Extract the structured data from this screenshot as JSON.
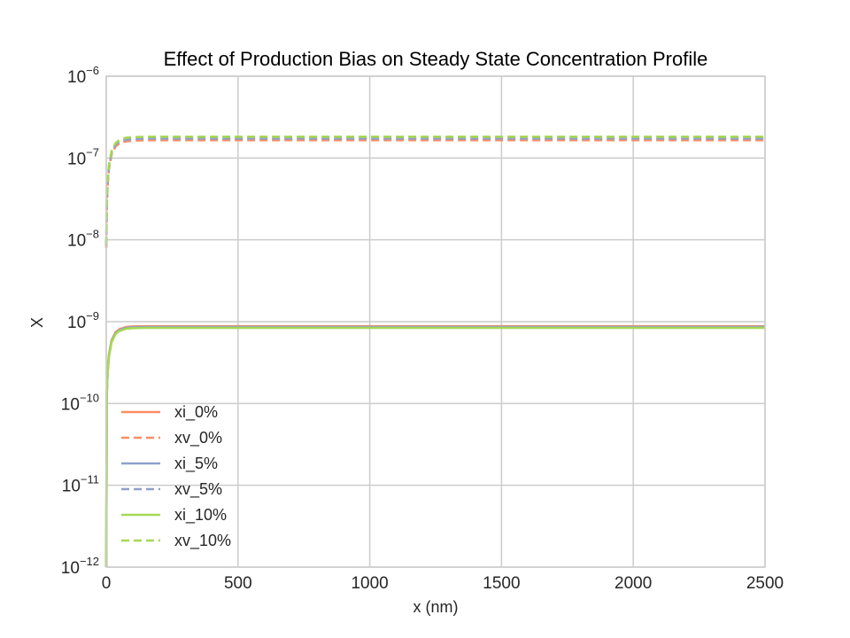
{
  "chart_data": {
    "type": "line",
    "title": "Effect of Production Bias on Steady State Concentration Profile",
    "xlabel": "x (nm)",
    "ylabel": "X",
    "xlim": [
      0,
      2500
    ],
    "ylim": [
      1e-12,
      1e-06
    ],
    "yscale": "log",
    "xticks": [
      0,
      500,
      1000,
      1500,
      2000,
      2500
    ],
    "xtick_labels": [
      "0",
      "500",
      "1000",
      "1500",
      "2000",
      "2500"
    ],
    "yticks": [
      {
        "base": "10",
        "exp": "−12",
        "value": 1e-12
      },
      {
        "base": "10",
        "exp": "−11",
        "value": 1e-11
      },
      {
        "base": "10",
        "exp": "−10",
        "value": 1e-10
      },
      {
        "base": "10",
        "exp": "−9",
        "value": 1e-09
      },
      {
        "base": "10",
        "exp": "−8",
        "value": 1e-08
      },
      {
        "base": "10",
        "exp": "−7",
        "value": 1e-07
      },
      {
        "base": "10",
        "exp": "−6",
        "value": 1e-06
      }
    ],
    "grid": true,
    "legend_position": "lower-left",
    "series": [
      {
        "name": "xi_0%",
        "color": "#fc8d62",
        "style": "solid",
        "plateau": 8.8e-10,
        "x": [
          0,
          2,
          5,
          10,
          20,
          35,
          50,
          75,
          100,
          150,
          200,
          300,
          500,
          1000,
          1500,
          2000,
          2500
        ],
        "y": [
          1e-12,
          1.3e-10,
          2.4e-10,
          3.9e-10,
          5.9e-10,
          7.4e-10,
          8.1e-10,
          8.6e-10,
          8.74e-10,
          8.8e-10,
          8.8e-10,
          8.8e-10,
          8.8e-10,
          8.8e-10,
          8.8e-10,
          8.8e-10,
          8.8e-10
        ]
      },
      {
        "name": "xv_0%",
        "color": "#fc8d62",
        "style": "dashed",
        "plateau": 1.65e-07,
        "x": [
          0,
          2,
          5,
          10,
          20,
          35,
          50,
          75,
          100,
          150,
          200,
          300,
          500,
          1000,
          1500,
          2000,
          2500
        ],
        "y": [
          8e-09,
          2.5e-08,
          4.5e-08,
          7.3e-08,
          1.1e-07,
          1.38e-07,
          1.51e-07,
          1.6e-07,
          1.63e-07,
          1.65e-07,
          1.65e-07,
          1.65e-07,
          1.65e-07,
          1.65e-07,
          1.65e-07,
          1.65e-07,
          1.65e-07
        ]
      },
      {
        "name": "xi_5%",
        "color": "#8da0cb",
        "style": "solid",
        "plateau": 8.6e-10,
        "x": [
          0,
          2,
          5,
          10,
          20,
          35,
          50,
          75,
          100,
          150,
          200,
          300,
          500,
          1000,
          1500,
          2000,
          2500
        ],
        "y": [
          1e-12,
          1.28e-10,
          2.35e-10,
          3.8e-10,
          5.75e-10,
          7.2e-10,
          7.9e-10,
          8.4e-10,
          8.54e-10,
          8.6e-10,
          8.6e-10,
          8.6e-10,
          8.6e-10,
          8.6e-10,
          8.6e-10,
          8.6e-10,
          8.6e-10
        ]
      },
      {
        "name": "xv_5%",
        "color": "#8da0cb",
        "style": "dashed",
        "plateau": 1.73e-07,
        "x": [
          0,
          2,
          5,
          10,
          20,
          35,
          50,
          75,
          100,
          150,
          200,
          300,
          500,
          1000,
          1500,
          2000,
          2500
        ],
        "y": [
          8.4e-09,
          2.6e-08,
          4.7e-08,
          7.7e-08,
          1.15e-07,
          1.45e-07,
          1.58e-07,
          1.68e-07,
          1.71e-07,
          1.73e-07,
          1.73e-07,
          1.73e-07,
          1.73e-07,
          1.73e-07,
          1.73e-07,
          1.73e-07,
          1.73e-07
        ]
      },
      {
        "name": "xi_10%",
        "color": "#a6d854",
        "style": "solid",
        "plateau": 8.4e-10,
        "x": [
          0,
          2,
          5,
          10,
          20,
          35,
          50,
          75,
          100,
          150,
          200,
          300,
          500,
          1000,
          1500,
          2000,
          2500
        ],
        "y": [
          1e-12,
          1.25e-10,
          2.3e-10,
          3.7e-10,
          5.6e-10,
          7.05e-10,
          7.7e-10,
          8.2e-10,
          8.34e-10,
          8.4e-10,
          8.4e-10,
          8.4e-10,
          8.4e-10,
          8.4e-10,
          8.4e-10,
          8.4e-10,
          8.4e-10
        ]
      },
      {
        "name": "xv_10%",
        "color": "#a6d854",
        "style": "dashed",
        "plateau": 1.82e-07,
        "x": [
          0,
          2,
          5,
          10,
          20,
          35,
          50,
          75,
          100,
          150,
          200,
          300,
          500,
          1000,
          1500,
          2000,
          2500
        ],
        "y": [
          8.8e-09,
          2.7e-08,
          4.9e-08,
          8.1e-08,
          1.21e-07,
          1.52e-07,
          1.66e-07,
          1.77e-07,
          1.8e-07,
          1.82e-07,
          1.82e-07,
          1.82e-07,
          1.82e-07,
          1.82e-07,
          1.82e-07,
          1.82e-07,
          1.82e-07
        ]
      }
    ]
  }
}
